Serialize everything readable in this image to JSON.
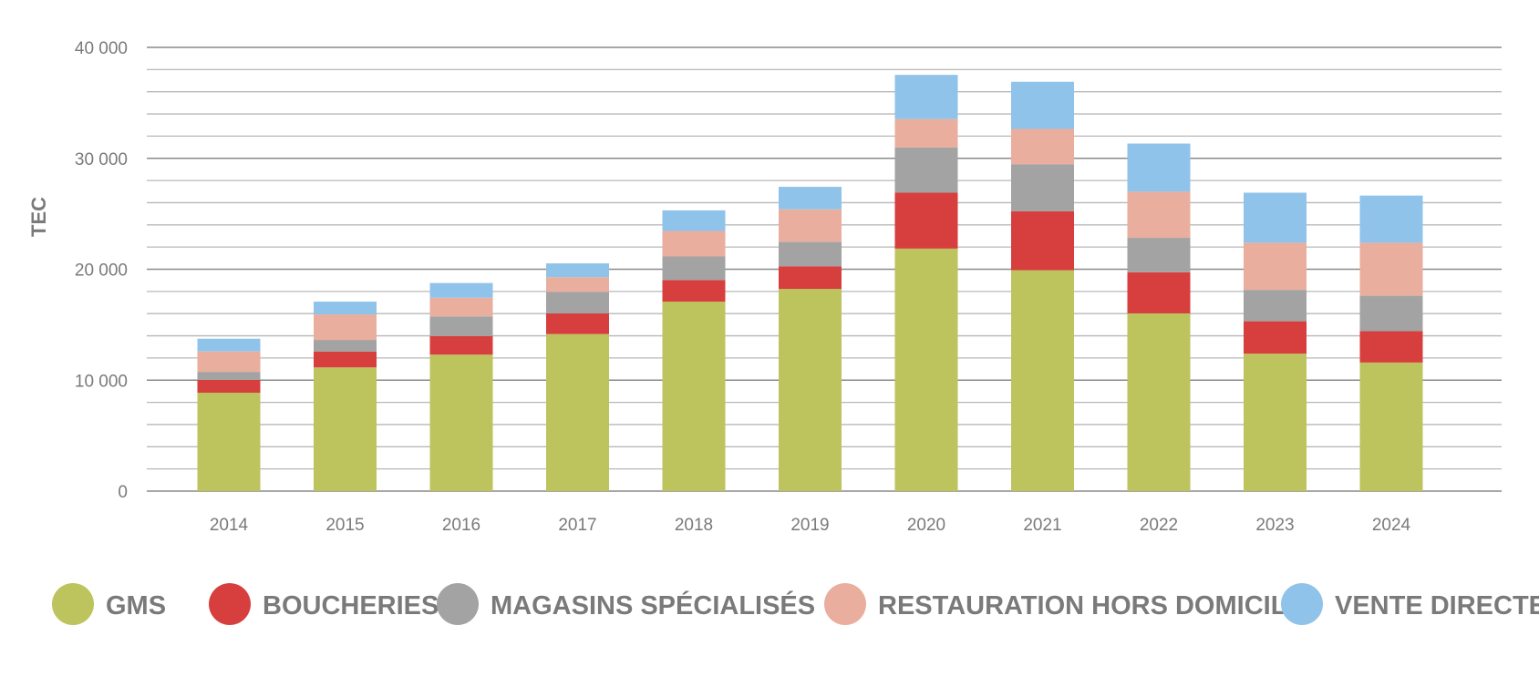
{
  "chart_data": {
    "type": "bar",
    "stacked": true,
    "title": "",
    "xlabel": "",
    "ylabel": "TEC",
    "ylim": [
      0,
      40000
    ],
    "yticks": [
      0,
      10000,
      20000,
      30000,
      40000
    ],
    "ytick_labels": [
      "0",
      "10 000",
      "20 000",
      "30 000",
      "40 000"
    ],
    "minor_grid_step": 2000,
    "grid": true,
    "legend_position": "bottom",
    "categories": [
      "2014",
      "2015",
      "2016",
      "2017",
      "2018",
      "2019",
      "2020",
      "2021",
      "2022",
      "2023",
      "2024"
    ],
    "series": [
      {
        "name": "GMS",
        "color": "#bdc35d",
        "values": [
          8870,
          11150,
          12300,
          14160,
          17080,
          18230,
          21860,
          19910,
          16020,
          12390,
          11590
        ]
      },
      {
        "name": "BOUCHERIES",
        "color": "#d63f3d",
        "values": [
          1150,
          1420,
          1680,
          1860,
          1950,
          2040,
          5040,
          5310,
          3710,
          2920,
          2830
        ]
      },
      {
        "name": "MAGASINS SPÉCIALISÉS",
        "color": "#a3a3a3",
        "values": [
          730,
          1060,
          1770,
          1940,
          2120,
          2210,
          4070,
          4250,
          3100,
          2830,
          3190
        ]
      },
      {
        "name": "RESTAURATION HORS DOMICILE",
        "color": "#eaae9e",
        "values": [
          1840,
          2300,
          1680,
          1330,
          2300,
          2920,
          2570,
          3180,
          4160,
          4250,
          4780
        ]
      },
      {
        "name": "VENTE DIRECTE",
        "color": "#90c3e9",
        "values": [
          1150,
          1150,
          1330,
          1240,
          1860,
          2030,
          3980,
          4250,
          4340,
          4510,
          4250
        ]
      }
    ]
  }
}
